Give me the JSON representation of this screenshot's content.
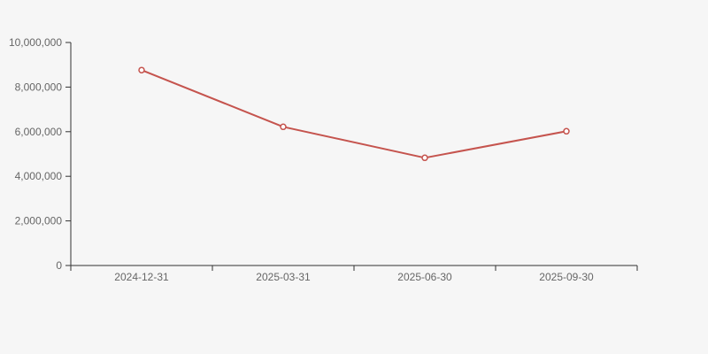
{
  "chart_data": {
    "type": "line",
    "title": "",
    "xlabel": "",
    "ylabel": "",
    "categories": [
      "2024-12-31",
      "2025-03-31",
      "2025-06-30",
      "2025-09-30"
    ],
    "series": [
      {
        "name": "series-1",
        "values": [
          8760000,
          6220000,
          4830000,
          6020000
        ]
      }
    ],
    "ylim": [
      0,
      10000000
    ],
    "y_ticks": [
      0,
      2000000,
      4000000,
      6000000,
      8000000,
      10000000
    ],
    "y_tick_labels": [
      "0",
      "2,000,000",
      "4,000,000",
      "6,000,000",
      "8,000,000",
      "10,000,000"
    ],
    "grid": false,
    "legend_position": "none",
    "colors": {
      "background": "#f6f6f6",
      "axis": "#333333",
      "tick_label": "#666666",
      "line": "#c5544e",
      "marker_fill": "#ffffff",
      "marker_stroke": "#c5544e"
    },
    "marker": "open-circle"
  }
}
